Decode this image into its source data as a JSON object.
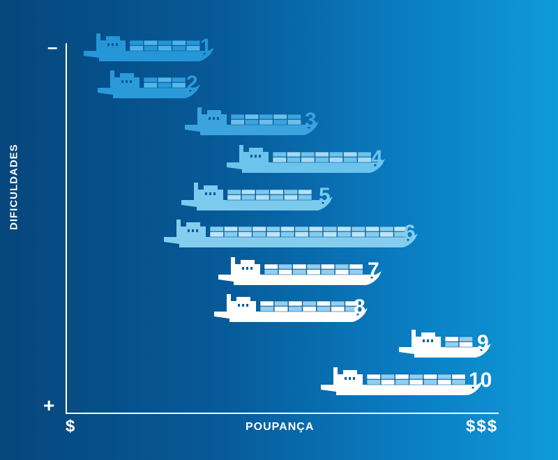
{
  "y_axis": {
    "title": "DIFICULDADES",
    "top_label": "–",
    "bottom_label": "+"
  },
  "x_axis": {
    "title": "POUPANÇA",
    "left_label": "$",
    "right_label": "$$$"
  },
  "ships": [
    {
      "number": "1",
      "containers": 5,
      "color": "#2596d8",
      "light": "#4db3e8",
      "hull_start": 120,
      "hull_end": 305
    },
    {
      "number": "2",
      "containers": 3,
      "color": "#2a9ad9",
      "light": "#55b6e8",
      "hull_start": 140,
      "hull_end": 285
    },
    {
      "number": "3",
      "containers": 5,
      "color": "#3ba4de",
      "light": "#6cc0ea",
      "hull_start": 265,
      "hull_end": 455
    },
    {
      "number": "4",
      "containers": 7,
      "color": "#6cc3ec",
      "light": "#a3dbf5",
      "hull_start": 325,
      "hull_end": 550
    },
    {
      "number": "5",
      "containers": 6,
      "color": "#7ccaee",
      "light": "#b2e1f6",
      "hull_start": 260,
      "hull_end": 475
    },
    {
      "number": "6",
      "containers": 14,
      "color": "#84cdee",
      "light": "#bce5f7",
      "hull_start": 235,
      "hull_end": 597
    },
    {
      "number": "7",
      "containers": 7,
      "color": "#ffffff",
      "light": "#8fcff0",
      "hull_start": 313,
      "hull_end": 545
    },
    {
      "number": "8",
      "containers": 7,
      "color": "#ffffff",
      "light": "#8fcff0",
      "hull_start": 307,
      "hull_end": 525
    },
    {
      "number": "9",
      "containers": 2,
      "color": "#ffffff",
      "light": "#8fcff0",
      "hull_start": 572,
      "hull_end": 702
    },
    {
      "number": "10",
      "containers": 7,
      "color": "#ffffff",
      "light": "#8fcff0",
      "hull_start": 460,
      "hull_end": 690
    }
  ]
}
